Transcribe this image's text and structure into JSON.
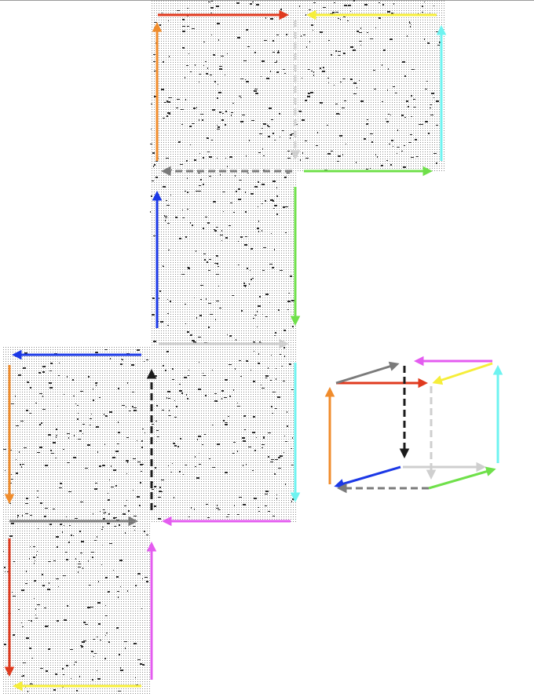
{
  "diagram": {
    "kind": "cube-net-with-colored-edge-arrows",
    "faces": [
      {
        "id": "face-top-left",
        "pattern": "dotted-noise"
      },
      {
        "id": "face-top-right",
        "pattern": "dotted-noise"
      },
      {
        "id": "face-middle-1",
        "pattern": "dotted-noise"
      },
      {
        "id": "face-middle-left",
        "pattern": "dotted-noise"
      },
      {
        "id": "face-middle-2",
        "pattern": "dotted-noise"
      },
      {
        "id": "face-bottom-left",
        "pattern": "dotted-noise"
      }
    ],
    "colors": {
      "red": "#e03a1e",
      "yellow": "#f6ee3a",
      "orange": "#f08c2c",
      "cyan": "#6ef3f0",
      "gray": "#7b7b7b",
      "lightgray": "#cfcfcf",
      "green": "#6fe04a",
      "blue": "#1b38e6",
      "magenta": "#e45cf0",
      "black": "#1b1b1b",
      "dot": "#7a7a7a"
    },
    "arrows": [
      {
        "name": "red-arrow-top",
        "color": "red",
        "style": "solid"
      },
      {
        "name": "yellow-arrow-top",
        "color": "yellow",
        "style": "solid"
      },
      {
        "name": "orange-arrow-top",
        "color": "orange",
        "style": "solid"
      },
      {
        "name": "cyan-arrow-top",
        "color": "cyan",
        "style": "solid"
      },
      {
        "name": "lightgray-dashed-arrow-top",
        "color": "lightgray",
        "style": "dashed"
      },
      {
        "name": "gray-dashed-arrow-top",
        "color": "gray",
        "style": "dashed"
      },
      {
        "name": "green-arrow-top",
        "color": "green",
        "style": "solid"
      },
      {
        "name": "blue-arrow-middle",
        "color": "blue",
        "style": "solid"
      },
      {
        "name": "green-arrow-middle",
        "color": "green",
        "style": "solid"
      },
      {
        "name": "lightgray-arrow-middle",
        "color": "lightgray",
        "style": "solid"
      },
      {
        "name": "blue-arrow-left",
        "color": "blue",
        "style": "solid"
      },
      {
        "name": "black-dashed-arrow-middle",
        "color": "black",
        "style": "dashed"
      },
      {
        "name": "orange-arrow-left",
        "color": "orange",
        "style": "solid"
      },
      {
        "name": "cyan-arrow-middle",
        "color": "cyan",
        "style": "solid"
      },
      {
        "name": "gray-arrow-left",
        "color": "gray",
        "style": "solid"
      },
      {
        "name": "magenta-arrow-middle",
        "color": "magenta",
        "style": "solid"
      },
      {
        "name": "red-arrow-bottom",
        "color": "red",
        "style": "solid"
      },
      {
        "name": "magenta-arrow-bottom",
        "color": "magenta",
        "style": "solid"
      },
      {
        "name": "yellow-arrow-bottom",
        "color": "yellow",
        "style": "solid"
      }
    ],
    "cube_edges": [
      {
        "name": "cube-edge-red",
        "color": "red",
        "style": "solid"
      },
      {
        "name": "cube-edge-gray",
        "color": "gray",
        "style": "solid"
      },
      {
        "name": "cube-edge-magenta",
        "color": "magenta",
        "style": "solid"
      },
      {
        "name": "cube-edge-yellow",
        "color": "yellow",
        "style": "solid"
      },
      {
        "name": "cube-edge-orange",
        "color": "orange",
        "style": "solid"
      },
      {
        "name": "cube-edge-black-dashed",
        "color": "black",
        "style": "dashed"
      },
      {
        "name": "cube-edge-lightgray-dashed",
        "color": "lightgray",
        "style": "dashed"
      },
      {
        "name": "cube-edge-cyan",
        "color": "cyan",
        "style": "solid"
      },
      {
        "name": "cube-edge-blue",
        "color": "blue",
        "style": "solid"
      },
      {
        "name": "cube-edge-lightgray",
        "color": "lightgray",
        "style": "solid"
      },
      {
        "name": "cube-edge-gray-dashed",
        "color": "gray",
        "style": "dashed"
      },
      {
        "name": "cube-edge-green",
        "color": "green",
        "style": "solid"
      }
    ]
  }
}
